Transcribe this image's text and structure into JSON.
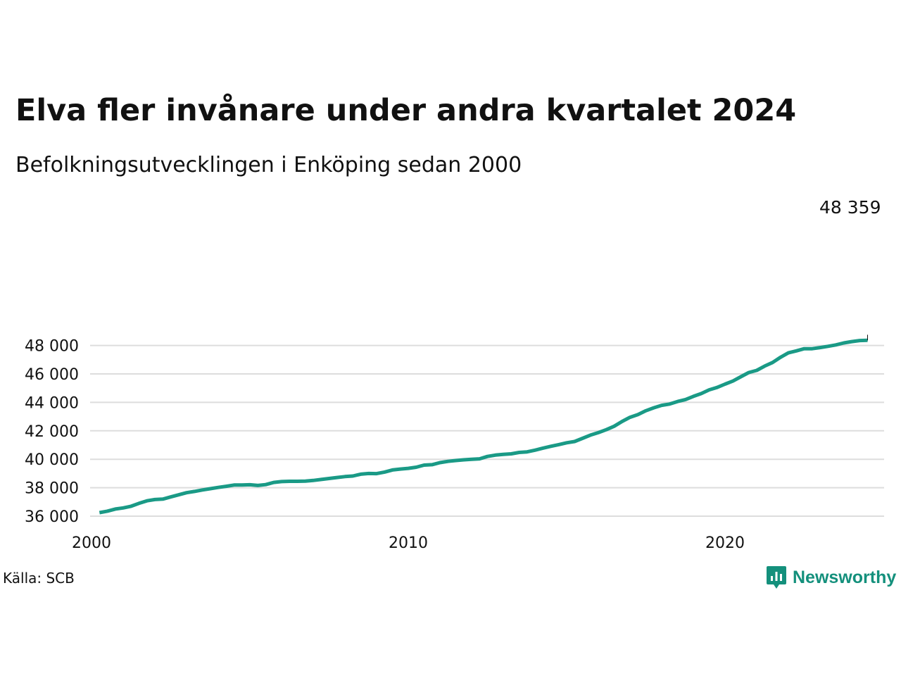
{
  "title": "Elva fler invånare under andra kvartalet 2024",
  "subtitle": "Befolkningsutvecklingen i Enköping sedan 2000",
  "source": "Källa: SCB",
  "brand": {
    "name": "Newsworthy",
    "color": "#14907c",
    "icon": "newsworthy-logo-icon"
  },
  "colors": {
    "line": "#1a9a86",
    "grid": "#dddddd",
    "text": "#111111"
  },
  "chart_data": {
    "type": "line",
    "title": "Elva fler invånare under andra kvartalet 2024",
    "subtitle": "Befolkningsutvecklingen i Enköping sedan 2000",
    "xlabel": "",
    "ylabel": "",
    "xlim": [
      2000,
      2025
    ],
    "ylim": [
      36000,
      48200
    ],
    "x_ticks": [
      2000,
      2010,
      2020
    ],
    "x_tick_labels": [
      "2000",
      "2010",
      "2020"
    ],
    "y_ticks": [
      36000,
      38000,
      40000,
      42000,
      44000,
      46000,
      48000
    ],
    "y_tick_labels": [
      "36 000",
      "38 000",
      "40 000",
      "42 000",
      "44 000",
      "46 000",
      "48 000"
    ],
    "grid": true,
    "end_label": "48 359",
    "series": [
      {
        "points": [
          [
            2000.25,
            36250
          ],
          [
            2000.5,
            36350
          ],
          [
            2000.75,
            36500
          ],
          [
            2001.0,
            36580
          ],
          [
            2001.25,
            36700
          ],
          [
            2001.5,
            36900
          ],
          [
            2001.75,
            37080
          ],
          [
            2002.0,
            37170
          ],
          [
            2002.25,
            37200
          ],
          [
            2002.5,
            37350
          ],
          [
            2002.75,
            37500
          ],
          [
            2003.0,
            37650
          ],
          [
            2003.25,
            37740
          ],
          [
            2003.5,
            37840
          ],
          [
            2003.75,
            37930
          ],
          [
            2004.0,
            38020
          ],
          [
            2004.25,
            38100
          ],
          [
            2004.5,
            38190
          ],
          [
            2004.75,
            38190
          ],
          [
            2005.0,
            38210
          ],
          [
            2005.25,
            38160
          ],
          [
            2005.5,
            38220
          ],
          [
            2005.75,
            38370
          ],
          [
            2006.0,
            38430
          ],
          [
            2006.25,
            38450
          ],
          [
            2006.5,
            38450
          ],
          [
            2006.75,
            38460
          ],
          [
            2007.0,
            38510
          ],
          [
            2007.25,
            38580
          ],
          [
            2007.5,
            38650
          ],
          [
            2007.75,
            38720
          ],
          [
            2008.0,
            38780
          ],
          [
            2008.25,
            38820
          ],
          [
            2008.5,
            38950
          ],
          [
            2008.75,
            39000
          ],
          [
            2009.0,
            38990
          ],
          [
            2009.25,
            39100
          ],
          [
            2009.5,
            39250
          ],
          [
            2009.75,
            39310
          ],
          [
            2010.0,
            39360
          ],
          [
            2010.25,
            39440
          ],
          [
            2010.5,
            39590
          ],
          [
            2010.75,
            39620
          ],
          [
            2011.0,
            39760
          ],
          [
            2011.25,
            39850
          ],
          [
            2011.5,
            39910
          ],
          [
            2011.75,
            39960
          ],
          [
            2012.0,
            40000
          ],
          [
            2012.25,
            40030
          ],
          [
            2012.5,
            40200
          ],
          [
            2012.75,
            40290
          ],
          [
            2013.0,
            40340
          ],
          [
            2013.25,
            40380
          ],
          [
            2013.5,
            40480
          ],
          [
            2013.75,
            40520
          ],
          [
            2014.0,
            40640
          ],
          [
            2014.25,
            40780
          ],
          [
            2014.5,
            40910
          ],
          [
            2014.75,
            41030
          ],
          [
            2015.0,
            41160
          ],
          [
            2015.25,
            41250
          ],
          [
            2015.5,
            41470
          ],
          [
            2015.75,
            41700
          ],
          [
            2016.0,
            41870
          ],
          [
            2016.25,
            42080
          ],
          [
            2016.5,
            42320
          ],
          [
            2016.75,
            42660
          ],
          [
            2017.0,
            42950
          ],
          [
            2017.25,
            43140
          ],
          [
            2017.5,
            43410
          ],
          [
            2017.75,
            43620
          ],
          [
            2018.0,
            43790
          ],
          [
            2018.25,
            43880
          ],
          [
            2018.5,
            44060
          ],
          [
            2018.75,
            44200
          ],
          [
            2019.0,
            44420
          ],
          [
            2019.25,
            44620
          ],
          [
            2019.5,
            44880
          ],
          [
            2019.75,
            45050
          ],
          [
            2020.0,
            45280
          ],
          [
            2020.25,
            45500
          ],
          [
            2020.5,
            45800
          ],
          [
            2020.75,
            46100
          ],
          [
            2021.0,
            46250
          ],
          [
            2021.25,
            46550
          ],
          [
            2021.5,
            46800
          ],
          [
            2021.75,
            47170
          ],
          [
            2022.0,
            47480
          ],
          [
            2022.25,
            47620
          ],
          [
            2022.5,
            47770
          ],
          [
            2022.75,
            47770
          ],
          [
            2023.0,
            47850
          ],
          [
            2023.25,
            47940
          ],
          [
            2023.5,
            48040
          ],
          [
            2023.75,
            48180
          ],
          [
            2024.0,
            48270
          ],
          [
            2024.25,
            48348
          ],
          [
            2024.5,
            48359
          ]
        ]
      }
    ]
  }
}
